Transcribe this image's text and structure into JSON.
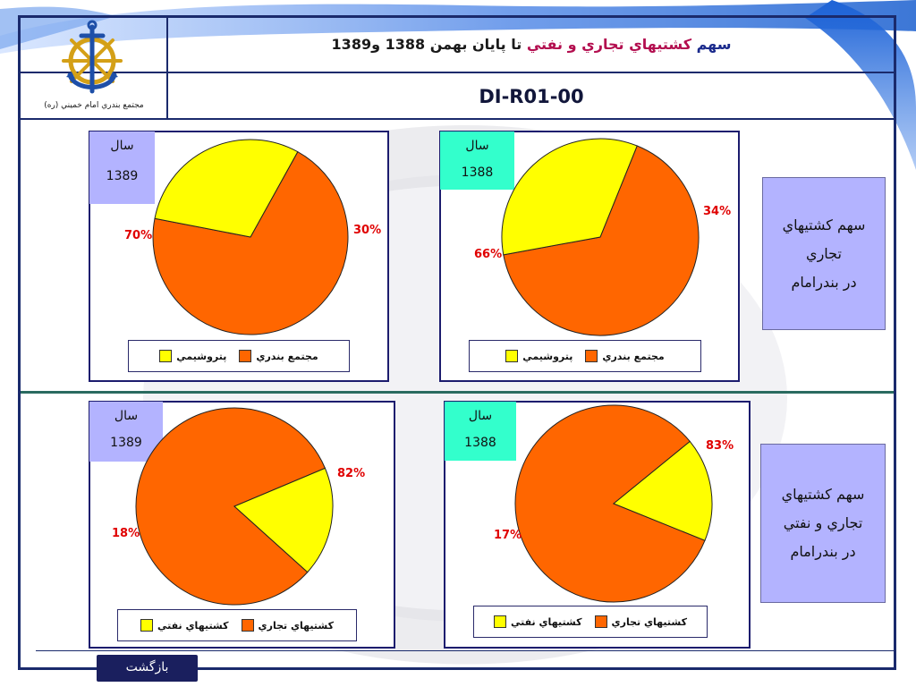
{
  "header": {
    "title_part1": "سهم",
    "title_part2": "کشتيهاي تجاري و نفتي",
    "title_part3": "تا پايان بهمن 1388 و1389",
    "doc_code": "DI-R01-00",
    "org_name": "مجتمع بندري امام خميني (ره)"
  },
  "colors": {
    "frame": "#1a2a6c",
    "orange": "#ff6600",
    "yellow": "#ffff00",
    "lavender": "#b3b3ff",
    "cyan": "#33ffcc",
    "percent_red": "#e00000",
    "divider_teal": "#2a6b60"
  },
  "year_label": "سال",
  "panels": {
    "top_left": {
      "year": "1389",
      "legend_a": "مجتمع بندري",
      "legend_b": "پتروشيمي",
      "pct_a": "70%",
      "pct_b": "30%"
    },
    "top_right": {
      "year": "1388",
      "legend_a": "مجتمع بندري",
      "legend_b": "پتروشيمي",
      "pct_a": "66%",
      "pct_b": "34%"
    },
    "bottom_left": {
      "year": "1389",
      "legend_a": "کشتيهاي تجاري",
      "legend_b": "کشتيهاي نفتي",
      "pct_a": "82%",
      "pct_b": "18%"
    },
    "bottom_right": {
      "year": "1388",
      "legend_a": "کشتيهاي تجاري",
      "legend_b": "کشتيهاي نفتي",
      "pct_a": "83%",
      "pct_b": "17%"
    }
  },
  "side_boxes": {
    "top": {
      "line1": "سهم کشتيهاي",
      "line2": "تجاري",
      "line3": "در بندرامام"
    },
    "bottom": {
      "line1": "سهم کشتيهاي",
      "line2": "تجاري و نفتي",
      "line3": "در بندرامام"
    }
  },
  "nav": {
    "back_label": "بازگشت"
  },
  "chart_data": [
    {
      "type": "pie",
      "title": "",
      "categories": [
        "مجتمع بندري",
        "پتروشيمي"
      ],
      "values": [
        70,
        30
      ],
      "colors": [
        "#ff6600",
        "#ffff00"
      ],
      "year": "1389"
    },
    {
      "type": "pie",
      "title": "",
      "categories": [
        "مجتمع بندري",
        "پتروشيمي"
      ],
      "values": [
        66,
        34
      ],
      "colors": [
        "#ff6600",
        "#ffff00"
      ],
      "year": "1388"
    },
    {
      "type": "pie",
      "title": "",
      "categories": [
        "کشتيهاي تجاري",
        "کشتيهاي نفتي"
      ],
      "values": [
        82,
        18
      ],
      "colors": [
        "#ff6600",
        "#ffff00"
      ],
      "year": "1389"
    },
    {
      "type": "pie",
      "title": "",
      "categories": [
        "کشتيهاي تجاري",
        "کشتيهاي نفتي"
      ],
      "values": [
        83,
        17
      ],
      "colors": [
        "#ff6600",
        "#ffff00"
      ],
      "year": "1388"
    }
  ]
}
